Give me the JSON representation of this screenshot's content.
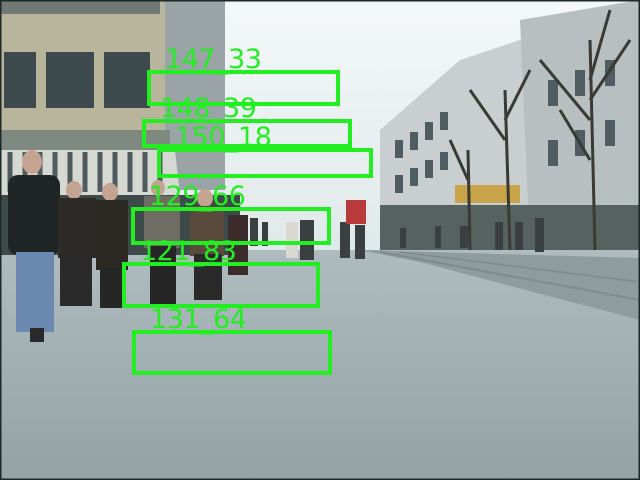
{
  "image": {
    "description_free": true
  },
  "overlay": {
    "color": "#22ee22",
    "detections": [
      {
        "label": "147_33"
      },
      {
        "label": "148_39"
      },
      {
        "label": "150_18"
      },
      {
        "label": "129_66"
      },
      {
        "label": "121_83"
      },
      {
        "label": "131_64"
      }
    ]
  }
}
